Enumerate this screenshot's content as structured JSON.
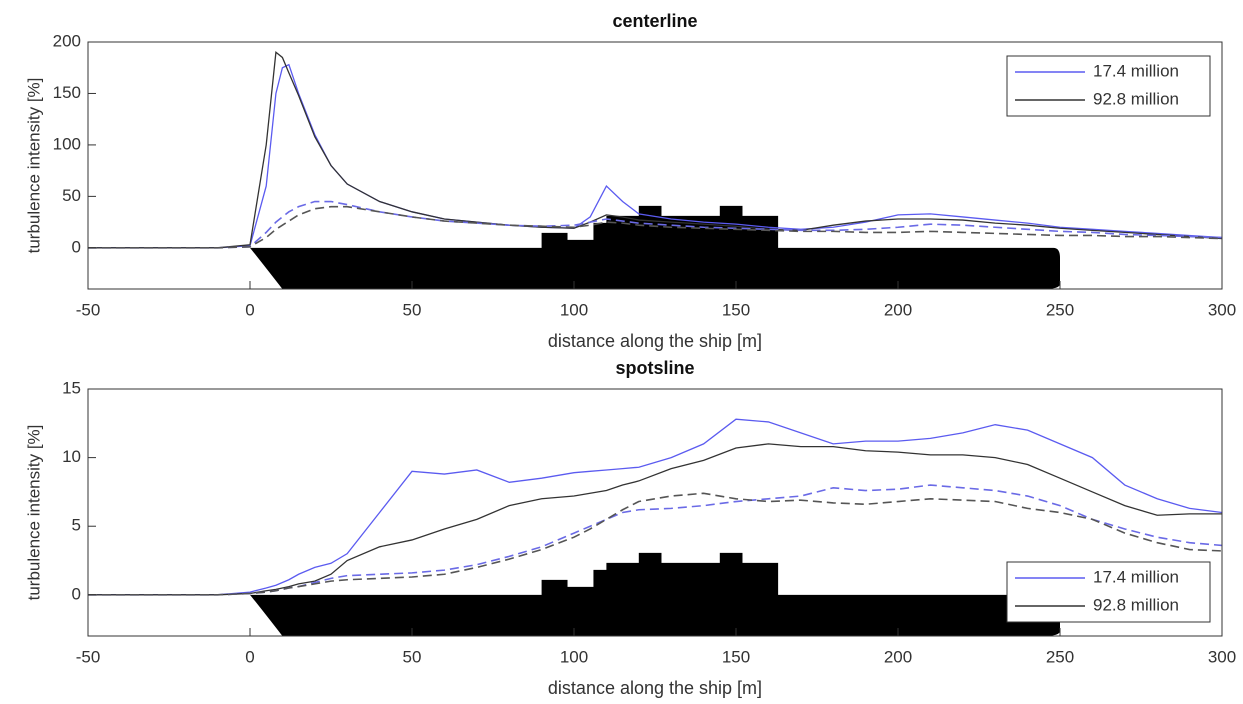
{
  "chart_data": [
    {
      "type": "line",
      "title": "centerline",
      "xlabel": "distance along the ship [m]",
      "ylabel": "turbulence intensity [%]",
      "x": [
        -50,
        -10,
        0,
        5,
        8,
        10,
        12,
        15,
        20,
        25,
        30,
        40,
        50,
        60,
        70,
        80,
        90,
        100,
        105,
        110,
        115,
        120,
        130,
        140,
        150,
        160,
        170,
        180,
        190,
        200,
        210,
        220,
        230,
        240,
        250,
        260,
        270,
        280,
        290,
        300
      ],
      "xlim": [
        -50,
        300
      ],
      "xticks": [
        -50,
        0,
        50,
        100,
        150,
        200,
        250,
        300
      ],
      "ylim": [
        -40,
        200
      ],
      "yticks": [
        0,
        50,
        100,
        150,
        200
      ],
      "legend": "upper right",
      "series": [
        {
          "name": "17.4 million",
          "color": "#5b5bf0",
          "dashed": false,
          "values": [
            0,
            0,
            2,
            60,
            150,
            175,
            178,
            150,
            110,
            80,
            62,
            45,
            35,
            28,
            25,
            22,
            20,
            19,
            30,
            60,
            45,
            33,
            28,
            25,
            23,
            20,
            18,
            20,
            25,
            32,
            33,
            30,
            27,
            24,
            20,
            18,
            16,
            14,
            12,
            10
          ]
        },
        {
          "name": "92.8 million",
          "color": "#333333",
          "dashed": false,
          "values": [
            0,
            0,
            3,
            100,
            190,
            185,
            170,
            148,
            108,
            80,
            62,
            45,
            35,
            28,
            25,
            22,
            20,
            19,
            25,
            32,
            30,
            27,
            25,
            23,
            21,
            18,
            17,
            22,
            26,
            28,
            28,
            27,
            24,
            22,
            19,
            17,
            15,
            13,
            11,
            9
          ]
        },
        {
          "color": "#6a6ae6",
          "dashed": true,
          "values": [
            0,
            0,
            1,
            15,
            25,
            30,
            35,
            40,
            45,
            45,
            42,
            35,
            30,
            26,
            24,
            22,
            21,
            22,
            25,
            28,
            26,
            24,
            22,
            20,
            19,
            18,
            17,
            17,
            18,
            20,
            23,
            22,
            20,
            18,
            16,
            15,
            13,
            12,
            11,
            10
          ]
        },
        {
          "color": "#555555",
          "dashed": true,
          "values": [
            0,
            0,
            1,
            10,
            18,
            22,
            26,
            32,
            38,
            40,
            40,
            35,
            30,
            26,
            24,
            22,
            21,
            20,
            22,
            25,
            24,
            22,
            20,
            19,
            18,
            17,
            16,
            16,
            15,
            15,
            16,
            15,
            14,
            13,
            12,
            12,
            11,
            11,
            10,
            9
          ]
        }
      ]
    },
    {
      "type": "line",
      "title": "spotsline",
      "xlabel": "distance along the ship [m]",
      "ylabel": "turbulence intensity [%]",
      "x": [
        -50,
        -10,
        0,
        5,
        8,
        10,
        12,
        15,
        20,
        25,
        30,
        40,
        50,
        60,
        70,
        80,
        90,
        100,
        105,
        110,
        115,
        120,
        130,
        140,
        150,
        160,
        170,
        180,
        190,
        200,
        210,
        220,
        230,
        240,
        250,
        260,
        270,
        280,
        290,
        300
      ],
      "xlim": [
        -50,
        300
      ],
      "xticks": [
        -50,
        0,
        50,
        100,
        150,
        200,
        250,
        300
      ],
      "ylim": [
        -3,
        15
      ],
      "yticks": [
        0,
        5,
        10,
        15
      ],
      "legend": "lower right",
      "series": [
        {
          "name": "17.4 million",
          "color": "#5b5bf0",
          "dashed": false,
          "values": [
            0,
            0,
            0.2,
            0.5,
            0.7,
            0.9,
            1.1,
            1.5,
            2,
            2.3,
            3,
            6,
            9,
            8.8,
            9.1,
            8.2,
            8.5,
            8.9,
            9,
            9.1,
            9.2,
            9.3,
            10,
            11,
            12.8,
            12.6,
            11.8,
            11,
            11.2,
            11.2,
            11.4,
            11.8,
            12.4,
            12,
            11,
            10,
            8,
            7,
            6.3,
            6
          ]
        },
        {
          "name": "92.8 million",
          "color": "#333333",
          "dashed": false,
          "values": [
            0,
            0,
            0.1,
            0.3,
            0.4,
            0.5,
            0.6,
            0.8,
            1,
            1.5,
            2.5,
            3.5,
            4,
            4.8,
            5.5,
            6.5,
            7,
            7.2,
            7.4,
            7.6,
            8,
            8.3,
            9.2,
            9.8,
            10.7,
            11,
            10.8,
            10.8,
            10.5,
            10.4,
            10.2,
            10.2,
            10,
            9.5,
            8.5,
            7.5,
            6.5,
            5.8,
            5.9,
            5.9
          ]
        },
        {
          "color": "#6a6ae6",
          "dashed": true,
          "values": [
            0,
            0,
            0.1,
            0.2,
            0.3,
            0.4,
            0.5,
            0.6,
            0.9,
            1.2,
            1.4,
            1.5,
            1.6,
            1.8,
            2.2,
            2.8,
            3.5,
            4.5,
            5,
            5.5,
            6,
            6.2,
            6.3,
            6.5,
            6.8,
            7,
            7.2,
            7.8,
            7.6,
            7.7,
            8,
            7.8,
            7.6,
            7.2,
            6.5,
            5.5,
            4.8,
            4.2,
            3.8,
            3.6
          ]
        },
        {
          "color": "#555555",
          "dashed": true,
          "values": [
            0,
            0,
            0.1,
            0.2,
            0.3,
            0.4,
            0.5,
            0.6,
            0.8,
            1,
            1.1,
            1.2,
            1.3,
            1.5,
            2,
            2.6,
            3.3,
            4.2,
            4.8,
            5.5,
            6.2,
            6.8,
            7.2,
            7.4,
            7,
            6.8,
            6.9,
            6.7,
            6.6,
            6.8,
            7,
            6.9,
            6.8,
            6.3,
            6,
            5.5,
            4.5,
            3.8,
            3.3,
            3.2
          ]
        }
      ]
    }
  ]
}
